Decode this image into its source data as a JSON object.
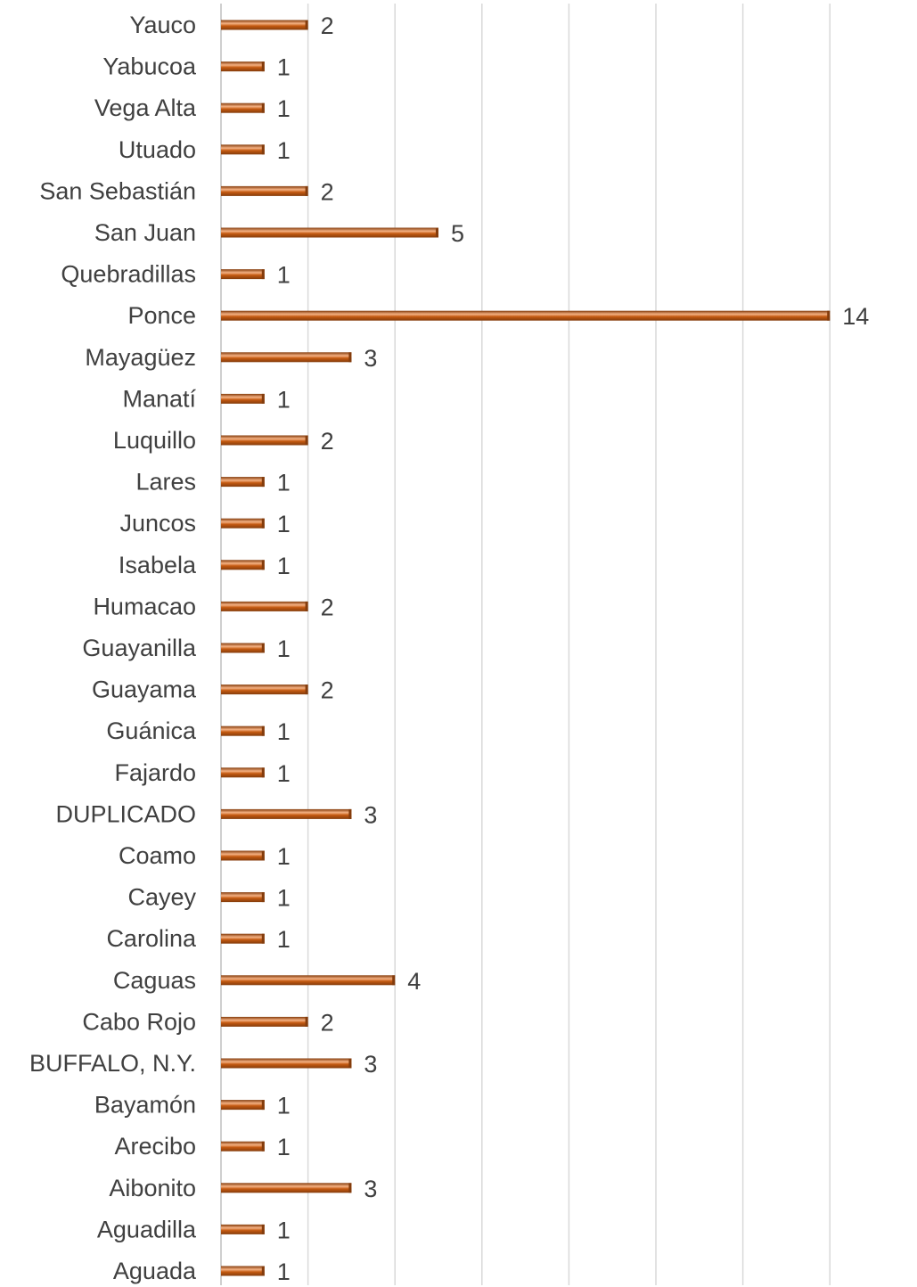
{
  "chart_data": {
    "type": "bar",
    "orientation": "horizontal",
    "categories": [
      "Yauco",
      "Yabucoa",
      "Vega Alta",
      "Utuado",
      "San Sebastián",
      "San Juan",
      "Quebradillas",
      "Ponce",
      "Mayagüez",
      "Manatí",
      "Luquillo",
      "Lares",
      "Juncos",
      "Isabela",
      "Humacao",
      "Guayanilla",
      "Guayama",
      "Guánica",
      "Fajardo",
      "DUPLICADO",
      "Coamo",
      "Cayey",
      "Carolina",
      "Caguas",
      "Cabo Rojo",
      "BUFFALO, N.Y.",
      "Bayamón",
      "Arecibo",
      "Aibonito",
      "Aguadilla",
      "Aguada"
    ],
    "values": [
      2,
      1,
      1,
      1,
      2,
      5,
      1,
      14,
      3,
      1,
      2,
      1,
      1,
      1,
      2,
      1,
      2,
      1,
      1,
      3,
      1,
      1,
      1,
      4,
      2,
      3,
      1,
      1,
      3,
      1,
      1
    ],
    "title": "",
    "xlabel": "",
    "ylabel": "",
    "xlim": [
      0,
      16
    ],
    "grid": true,
    "legend": "none",
    "colors": {
      "bar": "#c55a11",
      "bar_highlight": "#f4b183",
      "bar_dark": "#843c0c",
      "text": "#404040",
      "grid": "#d9d9d9"
    }
  }
}
